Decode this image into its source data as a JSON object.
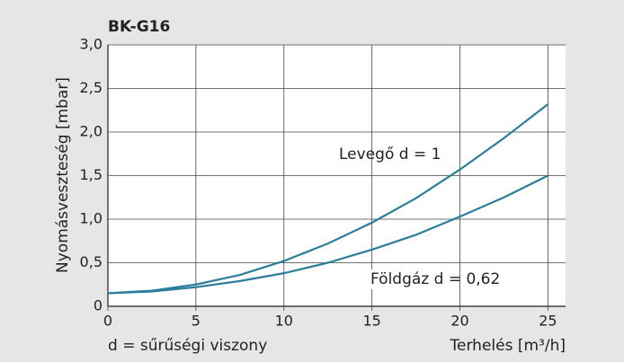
{
  "chart_data": {
    "type": "line",
    "title": "BK-G16",
    "ylabel": "Nyomásveszteség [mbar]",
    "xlabel": "Terhelés [m³/h]",
    "annotation": "d = sűrűségi viszony",
    "x": [
      0,
      2.5,
      5,
      7.5,
      10,
      12.5,
      15,
      17.5,
      20,
      22.5,
      25
    ],
    "series": [
      {
        "name": "Levegő d = 1",
        "color": "#2b7d9c",
        "values": [
          0.15,
          0.18,
          0.25,
          0.36,
          0.52,
          0.72,
          0.96,
          1.24,
          1.57,
          1.93,
          2.32
        ]
      },
      {
        "name": "Földgáz d = 0,62",
        "color": "#2b7d9c",
        "values": [
          0.15,
          0.17,
          0.22,
          0.29,
          0.38,
          0.5,
          0.65,
          0.82,
          1.03,
          1.25,
          1.5
        ]
      }
    ],
    "xlim": [
      0,
      26
    ],
    "xticks": [
      0,
      5,
      10,
      15,
      20,
      25
    ],
    "ylim": [
      0,
      3
    ],
    "yticks": [
      0,
      {
        "value": 0.5,
        "label": "0,5"
      },
      {
        "value": 1,
        "label": "1,0"
      },
      {
        "value": 1.5,
        "label": "1,5"
      },
      {
        "value": 2,
        "label": "2,0"
      },
      {
        "value": 2.5,
        "label": "2,5"
      },
      {
        "value": 3,
        "label": "3,0"
      }
    ],
    "grid": true
  }
}
